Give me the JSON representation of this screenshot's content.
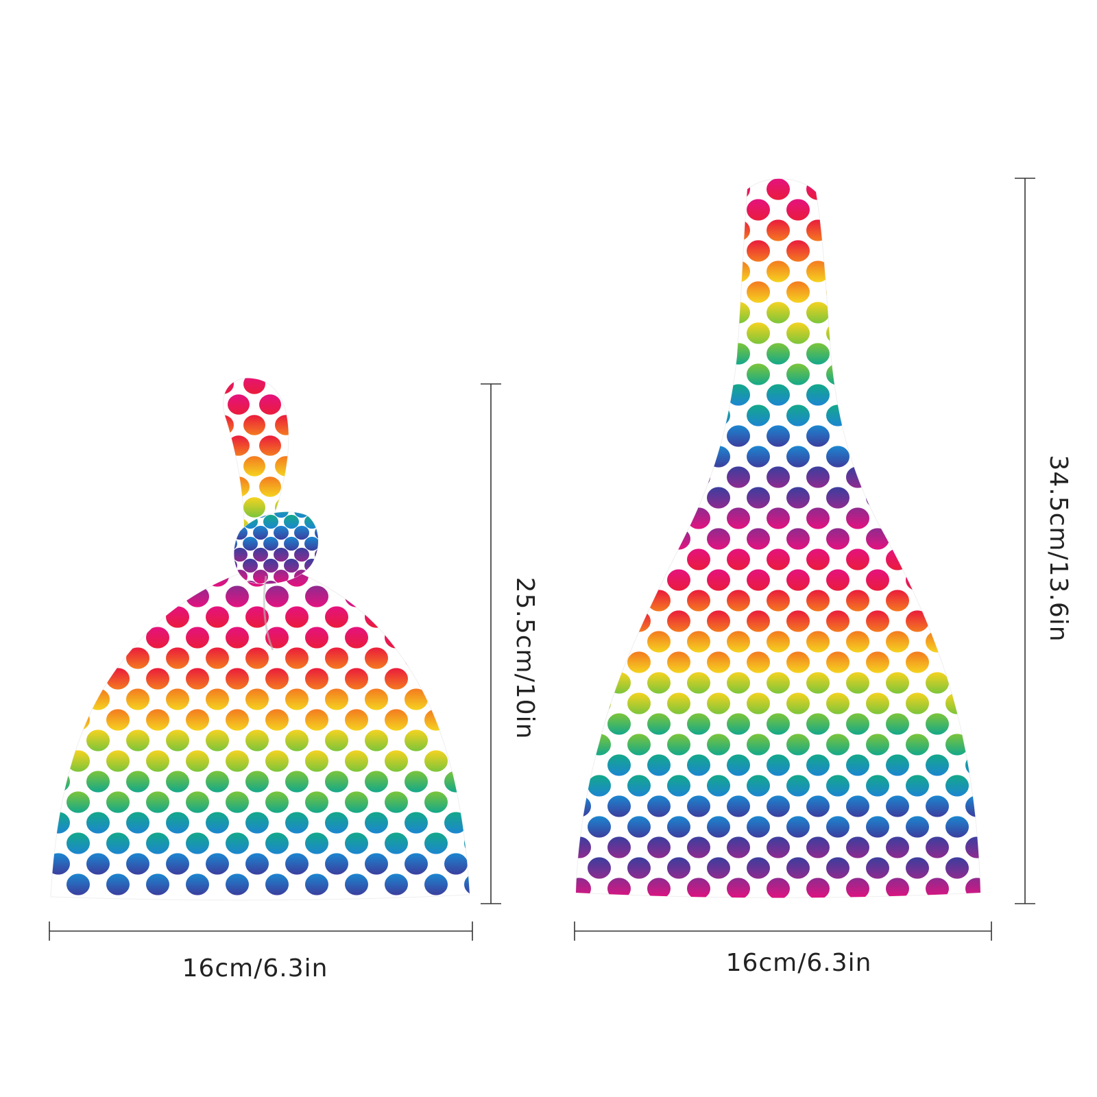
{
  "products": [
    {
      "id": "knot-hat",
      "width_label": "16cm/6.3in",
      "height_label": "25.5cm/10in"
    },
    {
      "id": "flat-hat",
      "width_label": "16cm/6.3in",
      "height_label": "34.5cm/13.6in"
    }
  ],
  "pattern": {
    "name": "rainbow-polka-dots",
    "rainbow_colors": [
      "#e4127f",
      "#ea1c3c",
      "#f47a20",
      "#f5d320",
      "#7cc53a",
      "#14a88a",
      "#1c86d0",
      "#3b3e9e",
      "#8e2b8f"
    ]
  }
}
